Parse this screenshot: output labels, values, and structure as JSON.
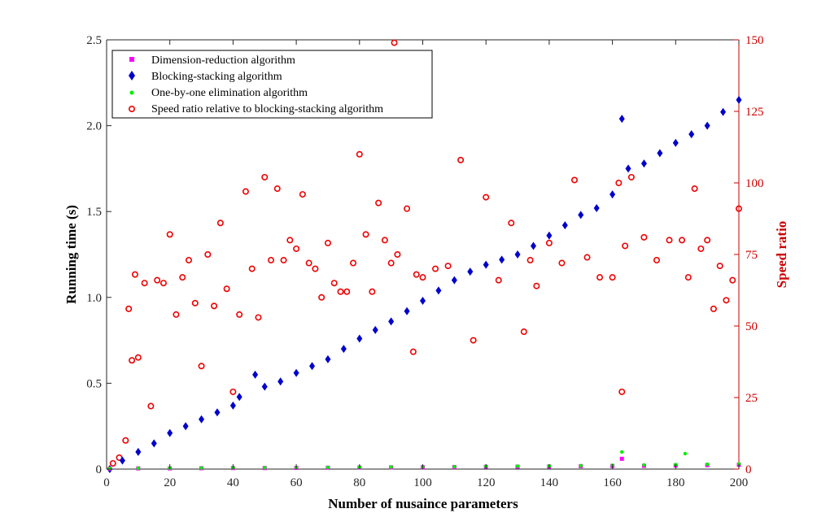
{
  "chart_data": {
    "type": "scatter",
    "xlabel": "Number of nusaince parameters",
    "ylabel": "Running time (s)",
    "ylabel_right": "Speed ratio",
    "xlim": [
      0,
      200
    ],
    "ylim": [
      0,
      2.5
    ],
    "ylim_right": [
      0,
      150
    ],
    "x_ticks": [
      "0",
      "20",
      "40",
      "60",
      "80",
      "100",
      "120",
      "140",
      "160",
      "180",
      "200"
    ],
    "y_ticks": [
      "0",
      "0.5",
      "1.0",
      "1.5",
      "2.0",
      "2.5"
    ],
    "y_ticks_right": [
      "0",
      "25",
      "50",
      "75",
      "100",
      "125",
      "150"
    ],
    "legend_position": "top-left",
    "colors": {
      "dimension_reduction": "#ff00ff",
      "blocking_stacking": "#0000cc",
      "one_by_one": "#00ee00",
      "speed_ratio": "#ee0000",
      "right_axis": "#cc0000"
    },
    "series": [
      {
        "name": "Dimension-reduction algorithm",
        "marker": "square",
        "axis": "left",
        "x": [
          1,
          10,
          20,
          30,
          40,
          50,
          60,
          70,
          80,
          90,
          100,
          110,
          120,
          130,
          140,
          150,
          160,
          163,
          170,
          180,
          190,
          200
        ],
        "y": [
          0.003,
          0.004,
          0.004,
          0.005,
          0.006,
          0.006,
          0.007,
          0.008,
          0.009,
          0.01,
          0.011,
          0.012,
          0.013,
          0.014,
          0.015,
          0.017,
          0.018,
          0.06,
          0.019,
          0.021,
          0.023,
          0.025
        ]
      },
      {
        "name": "Blocking-stacking algorithm",
        "marker": "diamond",
        "axis": "left",
        "x": [
          1,
          5,
          10,
          15,
          20,
          25,
          30,
          35,
          40,
          42,
          47,
          50,
          55,
          60,
          65,
          70,
          75,
          80,
          85,
          90,
          95,
          100,
          105,
          110,
          115,
          120,
          125,
          130,
          135,
          140,
          145,
          150,
          155,
          160,
          163,
          165,
          170,
          175,
          180,
          185,
          190,
          195,
          200
        ],
        "y": [
          0.0,
          0.05,
          0.1,
          0.15,
          0.21,
          0.25,
          0.29,
          0.33,
          0.37,
          0.42,
          0.55,
          0.48,
          0.51,
          0.56,
          0.6,
          0.64,
          0.7,
          0.76,
          0.81,
          0.86,
          0.92,
          0.98,
          1.04,
          1.1,
          1.15,
          1.19,
          1.22,
          1.25,
          1.3,
          1.36,
          1.42,
          1.48,
          1.52,
          1.6,
          2.04,
          1.75,
          1.78,
          1.84,
          1.9,
          1.95,
          2.0,
          2.08,
          2.15
        ]
      },
      {
        "name": "One-by-one elimination algorithm",
        "marker": "dot",
        "axis": "left",
        "x": [
          1,
          10,
          20,
          30,
          40,
          50,
          60,
          70,
          80,
          90,
          100,
          110,
          120,
          130,
          140,
          150,
          160,
          163,
          170,
          180,
          183,
          190,
          200
        ],
        "y": [
          0.004,
          0.005,
          0.006,
          0.007,
          0.008,
          0.008,
          0.009,
          0.01,
          0.011,
          0.012,
          0.013,
          0.014,
          0.016,
          0.017,
          0.018,
          0.02,
          0.022,
          0.1,
          0.024,
          0.026,
          0.09,
          0.028,
          0.03
        ]
      },
      {
        "name": "Speed ratio relative to blocking-stacking algorithm",
        "marker": "circle",
        "axis": "right",
        "x": [
          2,
          4,
          6,
          7,
          8,
          9,
          10,
          12,
          14,
          16,
          18,
          20,
          22,
          24,
          26,
          28,
          30,
          32,
          34,
          36,
          38,
          40,
          42,
          44,
          46,
          48,
          50,
          52,
          54,
          56,
          58,
          60,
          62,
          64,
          66,
          68,
          70,
          72,
          74,
          76,
          78,
          80,
          82,
          84,
          86,
          88,
          90,
          91,
          92,
          95,
          97,
          98,
          100,
          104,
          108,
          112,
          116,
          120,
          124,
          128,
          132,
          134,
          136,
          140,
          144,
          148,
          152,
          156,
          160,
          162,
          163,
          164,
          166,
          170,
          174,
          178,
          182,
          184,
          186,
          188,
          190,
          192,
          194,
          196,
          198,
          200
        ],
        "y": [
          2,
          4,
          10,
          56,
          38,
          68,
          39,
          65,
          22,
          66,
          65,
          82,
          54,
          67,
          73,
          58,
          36,
          75,
          57,
          86,
          63,
          27,
          54,
          97,
          70,
          53,
          102,
          73,
          98,
          73,
          80,
          77,
          96,
          72,
          70,
          60,
          79,
          65,
          62,
          62,
          72,
          110,
          82,
          62,
          93,
          80,
          72,
          149,
          75,
          91,
          41,
          68,
          67,
          70,
          71,
          108,
          45,
          95,
          66,
          86,
          48,
          73,
          64,
          79,
          72,
          101,
          74,
          67,
          67,
          100,
          27,
          78,
          102,
          81,
          73,
          80,
          80,
          67,
          98,
          77,
          80,
          56,
          71,
          59,
          66,
          91
        ]
      }
    ]
  }
}
